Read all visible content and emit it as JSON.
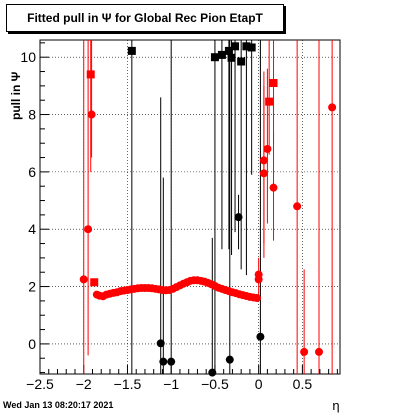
{
  "title": "Fitted pull in  Ψ  for Global Rec Pion EtapT",
  "datestamp": "Wed Jan 13 08:20:17 2021",
  "chart_data": {
    "type": "scatter",
    "title": "Fitted pull in  Ψ  for Global Rec Pion EtapT",
    "xlabel": "η",
    "ylabel": "pull in  Ψ",
    "xlim": [
      -2.5,
      0.93
    ],
    "ylim": [
      -1.05,
      10.6
    ],
    "xticks": [
      -2.5,
      -2,
      -1.5,
      -1,
      -0.5,
      0,
      0.5
    ],
    "yticks": [
      0,
      2,
      4,
      6,
      8,
      10
    ],
    "grid": true,
    "series": [
      {
        "color": "#ff0000",
        "marker": "circle",
        "points": [
          {
            "x": -2.0,
            "y": 2.25,
            "lo": -1.05,
            "hi": 10.6
          },
          {
            "x": -1.95,
            "y": 4.0,
            "lo": -0.4,
            "hi": 10.6
          },
          {
            "x": -1.91,
            "y": 8.0,
            "lo": 6.5,
            "hi": 10.6
          },
          {
            "x": -1.85,
            "y": 1.72
          },
          {
            "x": -1.82,
            "y": 1.68
          },
          {
            "x": -1.78,
            "y": 1.66
          },
          {
            "x": -1.74,
            "y": 1.72
          },
          {
            "x": -1.7,
            "y": 1.75
          },
          {
            "x": -1.66,
            "y": 1.78
          },
          {
            "x": -1.62,
            "y": 1.8
          },
          {
            "x": -1.58,
            "y": 1.84
          },
          {
            "x": -1.54,
            "y": 1.86
          },
          {
            "x": -1.5,
            "y": 1.88
          },
          {
            "x": -1.46,
            "y": 1.9
          },
          {
            "x": -1.42,
            "y": 1.92
          },
          {
            "x": -1.38,
            "y": 1.94
          },
          {
            "x": -1.34,
            "y": 1.95
          },
          {
            "x": -1.3,
            "y": 1.95
          },
          {
            "x": -1.26,
            "y": 1.95
          },
          {
            "x": -1.22,
            "y": 1.94
          },
          {
            "x": -1.18,
            "y": 1.92
          },
          {
            "x": -1.14,
            "y": 1.9
          },
          {
            "x": -1.1,
            "y": 1.88
          },
          {
            "x": -1.06,
            "y": 1.87
          },
          {
            "x": -1.02,
            "y": 1.88
          },
          {
            "x": -0.98,
            "y": 1.92
          },
          {
            "x": -0.94,
            "y": 1.98
          },
          {
            "x": -0.9,
            "y": 2.04
          },
          {
            "x": -0.86,
            "y": 2.1
          },
          {
            "x": -0.82,
            "y": 2.15
          },
          {
            "x": -0.78,
            "y": 2.2
          },
          {
            "x": -0.74,
            "y": 2.22
          },
          {
            "x": -0.7,
            "y": 2.22
          },
          {
            "x": -0.66,
            "y": 2.2
          },
          {
            "x": -0.62,
            "y": 2.17
          },
          {
            "x": -0.58,
            "y": 2.13
          },
          {
            "x": -0.54,
            "y": 2.08
          },
          {
            "x": -0.5,
            "y": 2.02
          },
          {
            "x": -0.46,
            "y": 1.96
          },
          {
            "x": -0.42,
            "y": 1.92
          },
          {
            "x": -0.38,
            "y": 1.88
          },
          {
            "x": -0.34,
            "y": 1.84
          },
          {
            "x": -0.3,
            "y": 1.8
          },
          {
            "x": -0.26,
            "y": 1.77
          },
          {
            "x": -0.22,
            "y": 1.73
          },
          {
            "x": -0.18,
            "y": 1.7
          },
          {
            "x": -0.14,
            "y": 1.67
          },
          {
            "x": -0.1,
            "y": 1.64
          },
          {
            "x": -0.06,
            "y": 1.62
          },
          {
            "x": -0.02,
            "y": 1.6
          },
          {
            "x": 0.0,
            "y": 2.42,
            "lo": 1.6,
            "hi": 3.0
          },
          {
            "x": 0.0,
            "y": 2.25
          },
          {
            "x": 0.06,
            "y": 6.4,
            "lo": 3.5,
            "hi": 9.5
          },
          {
            "x": 0.06,
            "y": 5.95,
            "lo": 3.0,
            "hi": 9.0
          },
          {
            "x": 0.1,
            "y": 6.8,
            "lo": 4.2,
            "hi": 9.6
          },
          {
            "x": 0.17,
            "y": 5.45,
            "lo": 3.6,
            "hi": 7.4
          },
          {
            "x": 0.44,
            "y": 4.8,
            "lo": -1.05,
            "hi": 10.6
          },
          {
            "x": 0.52,
            "y": -0.28,
            "lo": -1.05,
            "hi": 2.6
          },
          {
            "x": 0.69,
            "y": -0.28,
            "lo": -1.05,
            "hi": 10.6
          },
          {
            "x": 0.84,
            "y": 8.25,
            "lo": -1.05,
            "hi": 10.6
          }
        ]
      },
      {
        "color": "#ff0000",
        "marker": "square",
        "points": [
          {
            "x": -1.92,
            "y": 9.4,
            "lo": 6.0,
            "hi": 10.6
          },
          {
            "x": -1.88,
            "y": 2.15
          },
          {
            "x": 0.12,
            "y": 8.45,
            "lo": 6.6,
            "hi": 10.6
          },
          {
            "x": 0.17,
            "y": 9.1,
            "lo": 7.0,
            "hi": 10.6
          }
        ]
      },
      {
        "color": "#000000",
        "marker": "circle",
        "points": [
          {
            "x": -1.12,
            "y": 0.02,
            "lo": -1.05,
            "hi": 8.6
          },
          {
            "x": -1.09,
            "y": -0.62,
            "lo": -1.05,
            "hi": 5.8
          },
          {
            "x": -1.0,
            "y": -0.62,
            "lo": -1.05,
            "hi": 10.6
          },
          {
            "x": -0.53,
            "y": -1.0,
            "lo": -1.05,
            "hi": 3.7
          },
          {
            "x": -0.33,
            "y": -0.55,
            "lo": -1.05,
            "hi": 10.6
          },
          {
            "x": -0.23,
            "y": 4.42,
            "lo": 3.3,
            "hi": 5.2
          },
          {
            "x": 0.02,
            "y": 0.25,
            "lo": -1.05,
            "hi": 10.6
          }
        ]
      },
      {
        "color": "#000000",
        "marker": "square",
        "points": [
          {
            "x": -1.45,
            "y": 10.22,
            "lo": -1.05,
            "hi": 10.6
          },
          {
            "x": -0.5,
            "y": 10.0,
            "lo": -1.05,
            "hi": 10.6
          },
          {
            "x": -0.42,
            "y": 10.08,
            "lo": 3.3,
            "hi": 10.6
          },
          {
            "x": -0.34,
            "y": 10.22,
            "lo": 3.3,
            "hi": 10.6
          },
          {
            "x": -0.31,
            "y": 9.98,
            "lo": 3.1,
            "hi": 10.6
          },
          {
            "x": -0.27,
            "y": 10.38,
            "lo": 3.9,
            "hi": 10.6
          },
          {
            "x": -0.2,
            "y": 9.85,
            "lo": 2.6,
            "hi": 10.6
          },
          {
            "x": -0.14,
            "y": 10.38,
            "lo": 2.4,
            "hi": 10.6
          },
          {
            "x": -0.08,
            "y": 10.34,
            "lo": 5.9,
            "hi": 10.6
          }
        ]
      }
    ]
  }
}
